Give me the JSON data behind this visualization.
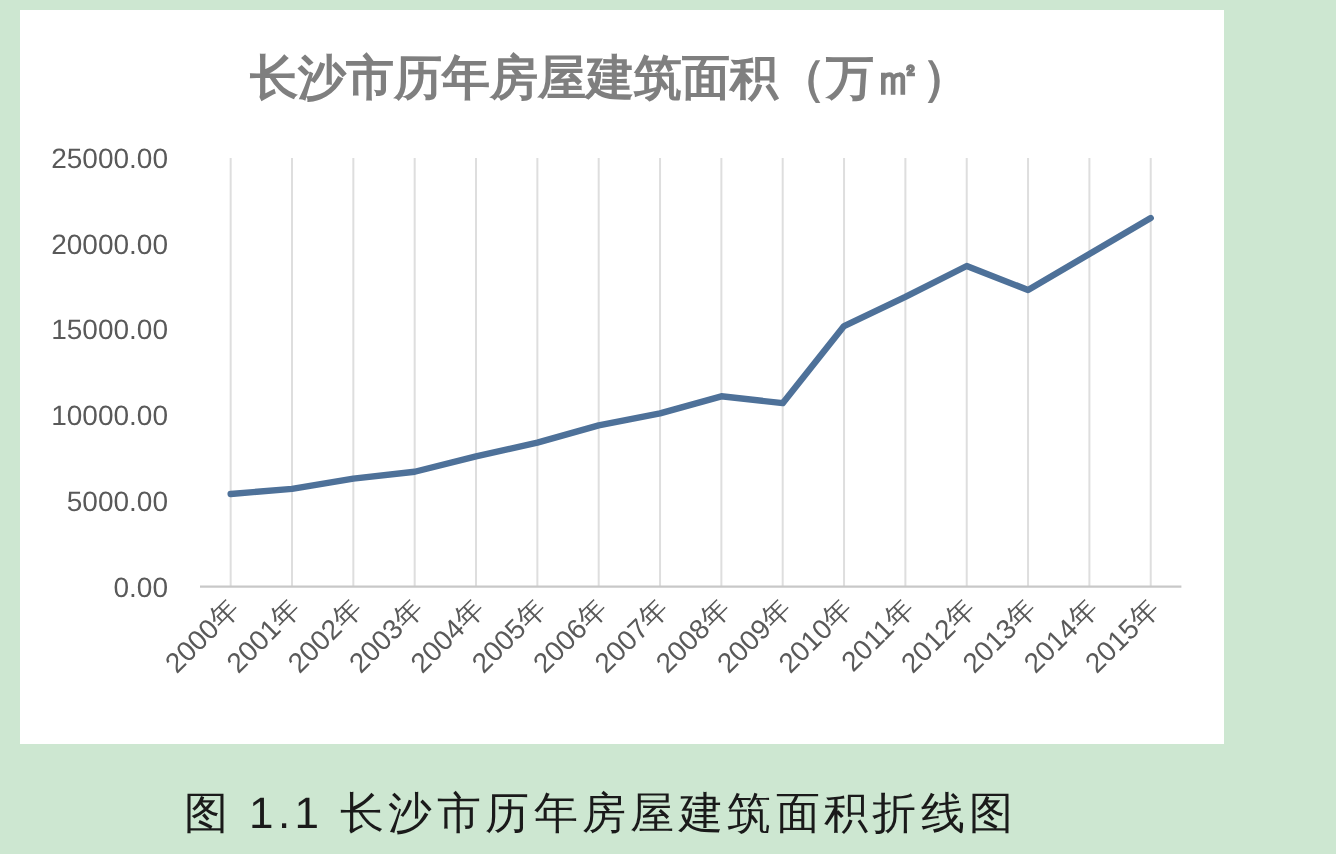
{
  "chart_data": {
    "type": "line",
    "title": "长沙市历年房屋建筑面积（万㎡）",
    "annotations": [
      "图 1.1 长沙市历年房屋建筑面积折线图"
    ],
    "categories": [
      "2000年",
      "2001年",
      "2002年",
      "2003年",
      "2004年",
      "2005年",
      "2006年",
      "2007年",
      "2008年",
      "2009年",
      "2010年",
      "2011年",
      "2012年",
      "2013年",
      "2014年",
      "2015年"
    ],
    "series": [
      {
        "color": "#4e7199",
        "values": [
          5400,
          5700,
          6300,
          6700,
          7600,
          8400,
          9400,
          10100,
          11100,
          10700,
          15200,
          16900,
          18700,
          17300,
          19400,
          21500
        ]
      }
    ],
    "ylim": [
      0,
      25000
    ],
    "yticks": [
      {
        "value": 0,
        "label": "0.00"
      },
      {
        "value": 5000,
        "label": "5000.00"
      },
      {
        "value": 10000,
        "label": "10000.00"
      },
      {
        "value": 15000,
        "label": "15000.00"
      },
      {
        "value": 20000,
        "label": "20000.00"
      },
      {
        "value": 25000,
        "label": "25000.00"
      }
    ],
    "grid": "x"
  }
}
